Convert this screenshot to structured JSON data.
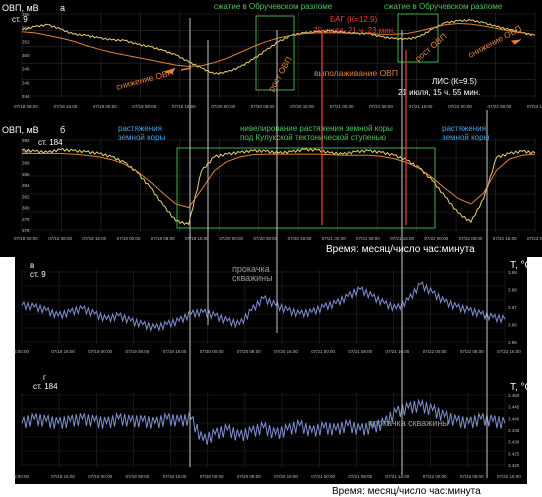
{
  "figure": {
    "bottom_time_label": "Время: месяц/число час:минута"
  },
  "panels": {
    "a": {
      "letter": "а",
      "station": "ст. 9",
      "ylabel": "ОВП, мВ",
      "yticks": [
        "356",
        "354",
        "352",
        "350",
        "348",
        "346",
        "244"
      ],
      "xticks": [
        "07/18 08:00",
        "07/18 16:00",
        "07/19 00:00",
        "07/19 08:00",
        "07/19 16:00",
        "07/20 00:00",
        "07/20 08:00",
        "07/20 16:00",
        "07/21 00:00",
        "07/21 08:00",
        "07/21 16:00",
        "07/22 00:00",
        "07/22 08:00",
        "07/22 16:00"
      ],
      "annotations": {
        "compression_1": "сжатие в Обручевском разломе",
        "compression_2": "сжатие в Обручевском разломе",
        "bag_event": "БАГ (К=12.9)",
        "bag_time": "20 июля, 21 ч. 23 мин.",
        "lis_event": "ЛИС (К=9.5)",
        "lis_time": "21 июля, 15 ч. 55 мин.",
        "decrease_1": "снижение ОВП",
        "increase_1": "рост ОВП",
        "flattening": "выполаживание ОВП",
        "increase_2": "рост ОВП",
        "decrease_2": "снижение ОВП"
      }
    },
    "b": {
      "letter": "б",
      "station": "ст. 184",
      "ylabel": "ОВП, мВ",
      "yticks": [
        "392",
        "390",
        "388",
        "386",
        "384",
        "382",
        "380",
        "378",
        "376"
      ],
      "xticks": [
        "07/18 00:00",
        "07/18 08:00",
        "07/18 16:00",
        "07/19 00:00",
        "07/19 08:00",
        "07/19 16:00",
        "07/20 00:00",
        "07/20 08:00",
        "07/20 16:00",
        "07/21 00:00",
        "07/21 08:00",
        "07/21 16:00",
        "07/22 00:00",
        "07/22 08:00",
        "07/22 16:00",
        "07/23 00:00"
      ],
      "annotations": {
        "stretch_left": "растяжения земной коры",
        "leveling": "нивелирование растяжения земной коры под Кулукской тектонической ступенью",
        "stretch_right": "растяжения земной коры"
      },
      "time_label": "Время: месяц/число час:минута"
    },
    "c": {
      "letter": "в",
      "station": "ст. 9",
      "ylabel": "T, °C",
      "yticks": [
        "3.99",
        "3.98",
        "3.97",
        "3.96",
        "3.95"
      ],
      "xticks": [
        "8:00:00",
        "07/18 16:00",
        "07/19 00:00",
        "07/19 08:00",
        "07/19 16:00",
        "07/20 00:00",
        "07/20 08:00",
        "07/20 16:00",
        "07/21 00:00",
        "07/21 08:00",
        "07/21 16:00",
        "07/22 00:00",
        "07/22 08:00",
        "07/22 16:00"
      ],
      "annotations": {
        "pumping": "прокачка скважины"
      }
    },
    "d": {
      "letter": "г",
      "station": "ст. 184",
      "ylabel": "T, °C",
      "yticks": [
        "3.450",
        "3.445",
        "3.440",
        "3.435",
        "3.430",
        "3.425",
        "3.420"
      ],
      "xticks": [
        "8:00:00",
        "07/18 16:00",
        "07/19 00:00",
        "07/19 08:00",
        "07/19 16:00",
        "07/20 00:00",
        "07/20 08:00",
        "07/20 16:00",
        "07/21 00:00",
        "07/21 08:00",
        "07/21 16:00",
        "07/22 00:00",
        "07/22 08:00",
        "07/22 16:00"
      ],
      "annotations": {
        "pumping": "прокачка скважины"
      }
    }
  },
  "colors": {
    "background": "#000000",
    "orp_trace": "#e8d070",
    "smooth": "#e0823a",
    "temperature": "#7f8ed0",
    "compression_box": "#3fae49",
    "compression_text": "#4cc25a",
    "event_line": "#e23b3b",
    "event_text": "#e23b3b",
    "arrow_text": "#e0823a",
    "stretch_text": "#4aa0e0",
    "marker_line": "#c8c8c8"
  },
  "chart_data": [
    {
      "type": "line",
      "panel": "а",
      "title": "",
      "xlabel": "",
      "ylabel": "ОВП, мВ",
      "x_range": [
        "07/18 00:00",
        "07/23 00:00"
      ],
      "ylim": [
        344,
        357
      ],
      "series": [
        {
          "values": [
            354.5,
            355.0,
            355.3,
            354.6,
            353.8,
            353.6,
            353.2,
            352.9,
            352.8,
            352.2,
            351.8,
            351.2,
            350.5,
            349.4,
            348.4,
            347.5,
            347.8,
            348.6,
            349.8,
            351.2,
            352.6,
            353.6,
            354.0,
            354.2,
            354.3,
            354.1,
            353.9,
            353.9,
            353.4,
            353.1,
            353.0,
            353.4,
            354.6,
            355.6,
            355.9,
            356.0,
            355.6,
            355.0,
            354.5,
            354.0,
            353.6
          ]
        },
        {
          "values": [
            354.2,
            354.0,
            353.6,
            353.2,
            352.7,
            352.0,
            351.4,
            350.9,
            350.5,
            350.1,
            349.7,
            349.3,
            348.9,
            348.7,
            348.8,
            349.3,
            350.0,
            350.9,
            351.8,
            352.6,
            353.2,
            353.6,
            353.9,
            354.0,
            354.0,
            354.0,
            353.9,
            353.9,
            353.8,
            353.8,
            353.9,
            354.3,
            354.8,
            355.3,
            355.5,
            355.4,
            355.1,
            354.7,
            354.3,
            354.0,
            353.7
          ]
        }
      ]
    },
    {
      "type": "line",
      "panel": "б",
      "title": "",
      "xlabel": "Время: месяц/число час:минута",
      "ylabel": "ОВП, мВ",
      "x_range": [
        "07/18 00:00",
        "07/23 00:00"
      ],
      "ylim": [
        376,
        392
      ],
      "series": [
        {
          "values": [
            390.2,
            390.0,
            389.8,
            390.3,
            390.1,
            389.9,
            389.6,
            389.0,
            388.0,
            386.2,
            383.6,
            380.4,
            377.6,
            377.0,
            386.5,
            389.0,
            389.5,
            389.8,
            390.1,
            390.0,
            389.7,
            389.9,
            390.3,
            390.2,
            389.7,
            389.5,
            389.9,
            390.1,
            389.8,
            389.3,
            388.4,
            387.0,
            384.8,
            381.9,
            379.0,
            377.4,
            381.6,
            388.9,
            389.6,
            390.0,
            389.7
          ]
        },
        {
          "values": [
            389.6,
            389.6,
            389.6,
            389.6,
            389.5,
            389.3,
            389.0,
            388.5,
            387.7,
            386.4,
            384.6,
            382.5,
            380.6,
            380.0,
            383.2,
            386.5,
            388.2,
            389.0,
            389.4,
            389.5,
            389.5,
            389.5,
            389.5,
            389.5,
            389.4,
            389.3,
            389.3,
            389.3,
            389.1,
            388.7,
            388.0,
            386.9,
            385.3,
            383.4,
            381.6,
            380.6,
            382.6,
            386.6,
            388.6,
            389.3,
            389.5
          ]
        }
      ]
    },
    {
      "type": "line",
      "panel": "в",
      "title": "",
      "xlabel": "",
      "ylabel": "T, °C",
      "x_range": [
        "07/18 00:00",
        "07/23 00:00"
      ],
      "ylim": [
        3.95,
        3.99
      ],
      "series": [
        {
          "values": [
            3.971,
            3.97,
            3.968,
            3.965,
            3.967,
            3.969,
            3.966,
            3.963,
            3.965,
            3.962,
            3.96,
            3.958,
            3.96,
            3.962,
            3.966,
            3.967,
            3.965,
            3.962,
            3.96,
            3.968,
            3.975,
            3.971,
            3.968,
            3.966,
            3.967,
            3.97,
            3.972,
            3.976,
            3.98,
            3.976,
            3.972,
            3.969,
            3.974,
            3.983,
            3.978,
            3.973,
            3.97,
            3.968,
            3.966,
            3.964,
            3.963
          ]
        }
      ]
    },
    {
      "type": "line",
      "panel": "г",
      "title": "",
      "xlabel": "Время: месяц/число час:минута",
      "ylabel": "T, °C",
      "x_range": [
        "07/18 00:00",
        "07/23 00:00"
      ],
      "ylim": [
        3.42,
        3.452
      ],
      "series": [
        {
          "values": [
            3.439,
            3.441,
            3.44,
            3.439,
            3.44,
            3.441,
            3.44,
            3.439,
            3.441,
            3.44,
            3.44,
            3.439,
            3.441,
            3.44,
            3.441,
            3.431,
            3.434,
            3.436,
            3.433,
            3.435,
            3.437,
            3.434,
            3.436,
            3.438,
            3.435,
            3.437,
            3.436,
            3.438,
            3.436,
            3.437,
            3.439,
            3.444,
            3.446,
            3.447,
            3.445,
            3.442,
            3.44,
            3.439,
            3.441,
            3.44,
            3.439
          ]
        }
      ]
    }
  ]
}
